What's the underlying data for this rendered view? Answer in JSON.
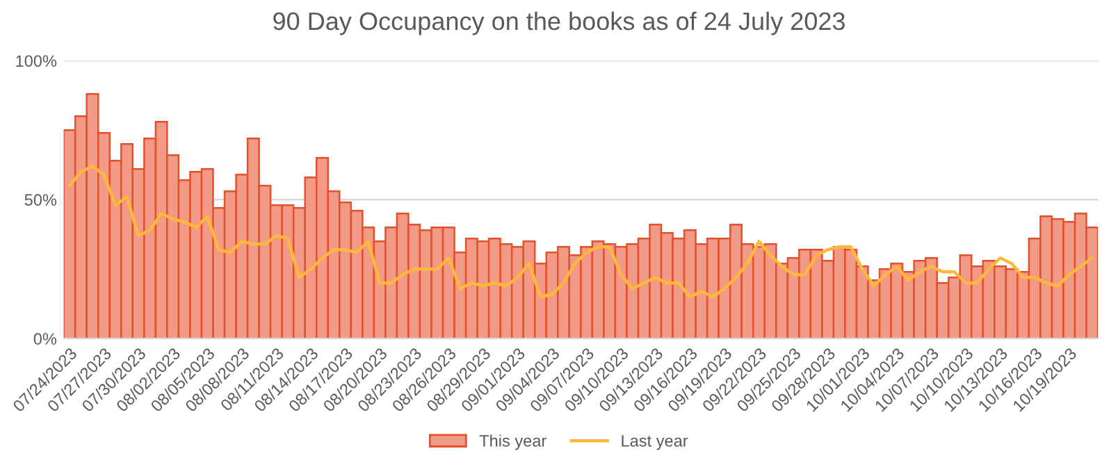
{
  "chart_data": {
    "type": "bar",
    "title": "90 Day Occupancy on the books as of 24 July 2023",
    "categories": [
      "07/24/2023",
      null,
      null,
      "07/27/2023",
      null,
      null,
      "07/30/2023",
      null,
      null,
      "08/02/2023",
      null,
      null,
      "08/05/2023",
      null,
      null,
      "08/08/2023",
      null,
      null,
      "08/11/2023",
      null,
      null,
      "08/14/2023",
      null,
      null,
      "08/17/2023",
      null,
      null,
      "08/20/2023",
      null,
      null,
      "08/23/2023",
      null,
      null,
      "08/26/2023",
      null,
      null,
      "08/29/2023",
      null,
      null,
      "09/01/2023",
      null,
      null,
      "09/04/2023",
      null,
      null,
      "09/07/2023",
      null,
      null,
      "09/10/2023",
      null,
      null,
      "09/13/2023",
      null,
      null,
      "09/16/2023",
      null,
      null,
      "09/19/2023",
      null,
      null,
      "09/22/2023",
      null,
      null,
      "09/25/2023",
      null,
      null,
      "09/28/2023",
      null,
      null,
      "10/01/2023",
      null,
      null,
      "10/04/2023",
      null,
      null,
      "10/07/2023",
      null,
      null,
      "10/10/2023",
      null,
      null,
      "10/13/2023",
      null,
      null,
      "10/16/2023",
      null,
      null,
      "10/19/2023",
      null,
      null
    ],
    "series": [
      {
        "name": "This year",
        "color": "#f19a88",
        "values": [
          75,
          80,
          88,
          74,
          64,
          70,
          61,
          72,
          78,
          66,
          57,
          60,
          61,
          47,
          53,
          59,
          72,
          55,
          48,
          48,
          47,
          58,
          65,
          53,
          49,
          46,
          40,
          35,
          40,
          45,
          41,
          39,
          40,
          40,
          31,
          36,
          35,
          36,
          34,
          33,
          35,
          27,
          31,
          33,
          30,
          33,
          35,
          34,
          33,
          34,
          36,
          41,
          38,
          36,
          39,
          34,
          36,
          36,
          41,
          34,
          33,
          34,
          27,
          29,
          32,
          32,
          28,
          33,
          32,
          26,
          21,
          25,
          27,
          24,
          28,
          29,
          20,
          22,
          30,
          26,
          28,
          26,
          25,
          24,
          36,
          44,
          43,
          42,
          45,
          40
        ]
      },
      {
        "name": "Last year",
        "type": "line",
        "color": "#ffb83b",
        "values": [
          55,
          60,
          62,
          59,
          48,
          51,
          37,
          39,
          45,
          43,
          42,
          40,
          44,
          32,
          31,
          35,
          34,
          34,
          37,
          36,
          22,
          25,
          29,
          32,
          32,
          31,
          35,
          20,
          20,
          23,
          25,
          25,
          25,
          29,
          18,
          20,
          19,
          20,
          19,
          22,
          27,
          15,
          16,
          20,
          27,
          31,
          33,
          33,
          23,
          18,
          20,
          22,
          20,
          20,
          15,
          17,
          15,
          18,
          22,
          27,
          35,
          30,
          26,
          23,
          23,
          30,
          32,
          33,
          33,
          25,
          19,
          23,
          26,
          21,
          24,
          26,
          24,
          24,
          20,
          20,
          25,
          29,
          27,
          22,
          22,
          20,
          19,
          23,
          26,
          29
        ]
      }
    ],
    "ylim": [
      0,
      100
    ],
    "yticks": [
      {
        "value": 0,
        "label": "0%"
      },
      {
        "value": 50,
        "label": "50%"
      },
      {
        "value": 100,
        "label": "100%"
      }
    ],
    "grid": "y",
    "legend": "bottom"
  }
}
